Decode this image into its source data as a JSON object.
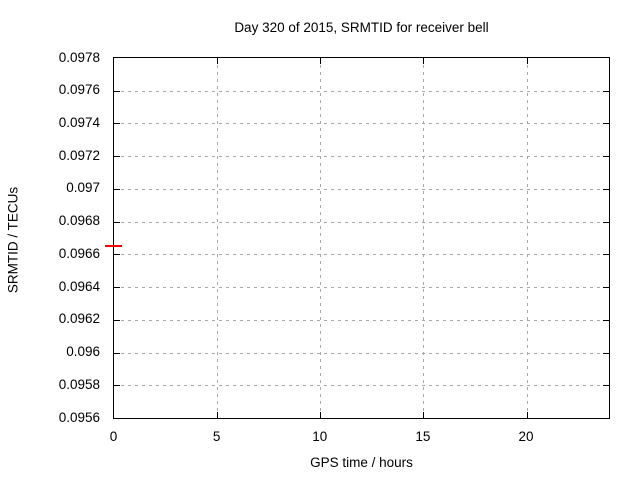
{
  "chart_data": {
    "type": "scatter",
    "title": "Day 320 of 2015, SRMTID for receiver bell",
    "xlabel": "GPS time / hours",
    "ylabel": "SRMTID / TECUs",
    "xlim": [
      0,
      24
    ],
    "ylim": [
      0.0956,
      0.0978
    ],
    "x_ticks": [
      0,
      5,
      10,
      15,
      20
    ],
    "x_tick_labels": [
      "0",
      "5",
      "10",
      "15",
      "20"
    ],
    "y_ticks": [
      0.0956,
      0.0958,
      0.096,
      0.0962,
      0.0964,
      0.0966,
      0.0968,
      0.097,
      0.0972,
      0.0974,
      0.0976,
      0.0978
    ],
    "y_tick_labels": [
      "0.0956",
      "0.0958",
      "0.096",
      "0.0962",
      "0.0964",
      "0.0966",
      "0.0968",
      "0.097",
      "0.0972",
      "0.0974",
      "0.0976",
      "0.0978"
    ],
    "grid": true,
    "legend_position": "none",
    "series": [
      {
        "name": "SRMTID",
        "marker": "horizontal-dash",
        "color": "#ff0000",
        "points": [
          {
            "x": 0,
            "y": 0.09665
          }
        ]
      }
    ]
  },
  "colors": {
    "background": "#ffffff",
    "frame": "#000000",
    "grid": "#a8a8a8",
    "text": "#000000",
    "series1": "#ff0000"
  }
}
